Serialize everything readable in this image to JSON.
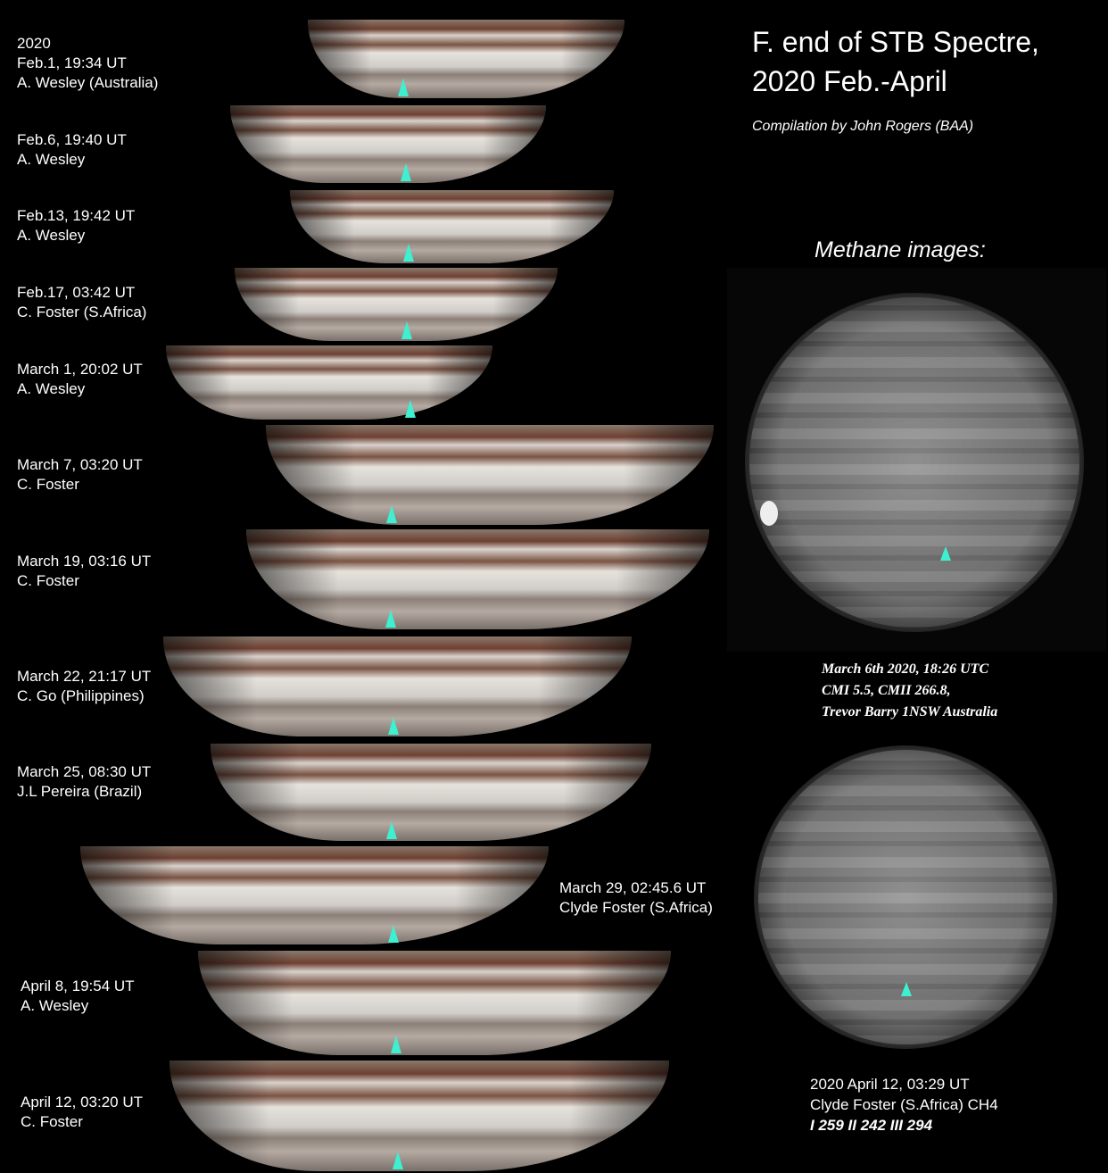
{
  "header": {
    "title_lines": [
      "F. end of STB Spectre,",
      "2020 Feb.-April"
    ],
    "subtitle": "Compilation by John Rogers (BAA)"
  },
  "strips": [
    {
      "lines": [
        "2020",
        "Feb.1, 19:34 UT",
        "A. Wesley (Australia)"
      ]
    },
    {
      "lines": [
        "Feb.6, 19:40 UT",
        "A. Wesley"
      ]
    },
    {
      "lines": [
        "Feb.13, 19:42 UT",
        "A. Wesley"
      ]
    },
    {
      "lines": [
        "Feb.17, 03:42 UT",
        "C. Foster (S.Africa)"
      ]
    },
    {
      "lines": [
        "March 1, 20:02 UT",
        "A. Wesley"
      ]
    },
    {
      "lines": [
        "March 7, 03:20 UT",
        "C. Foster"
      ]
    },
    {
      "lines": [
        "March 19, 03:16 UT",
        "C. Foster"
      ]
    },
    {
      "lines": [
        "March 22, 21:17 UT",
        "C. Go (Philippines)"
      ]
    },
    {
      "lines": [
        "March 25, 08:30 UT",
        "J.L Pereira (Brazil)"
      ]
    },
    {
      "lines": [
        "March 29, 02:45.6 UT",
        "Clyde Foster (S.Africa)"
      ]
    },
    {
      "lines": [
        "April 8, 19:54 UT",
        "A. Wesley"
      ]
    },
    {
      "lines": [
        "April 12, 03:20 UT",
        "C. Foster"
      ]
    }
  ],
  "methane": {
    "heading": "Methane images:",
    "images": [
      {
        "caption": [
          "March 6th 2020, 18:26 UTC",
          "CMI 5.5, CMII 266.8,",
          "Trevor Barry 1NSW Australia"
        ]
      },
      {
        "caption": [
          "2020 April 12, 03:29 UT",
          "Clyde Foster (S.Africa)   CH4",
          "I 259  II 242  III 294"
        ]
      }
    ]
  }
}
